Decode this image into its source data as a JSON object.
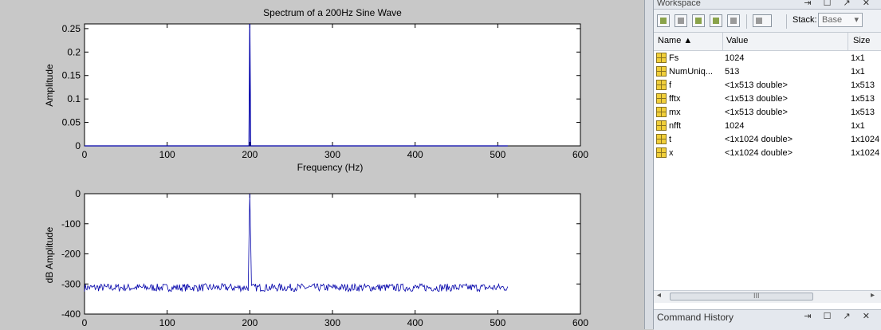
{
  "figure": {
    "chart_data": [
      {
        "type": "line",
        "title": "Spectrum of a 200Hz Sine Wave",
        "xlabel": "Frequency (Hz)",
        "ylabel": "Amplitude",
        "xlim": [
          0,
          600
        ],
        "ylim": [
          0,
          0.26
        ],
        "xticks": [
          "0",
          "100",
          "200",
          "300",
          "400",
          "500",
          "600"
        ],
        "yticks": [
          "0",
          "0.05",
          "0.1",
          "0.15",
          "0.2",
          "0.25"
        ],
        "x": [
          0,
          199,
          199.5,
          200,
          200.5,
          201,
          512
        ],
        "y": [
          0,
          0,
          0.12,
          0.26,
          0.12,
          0,
          0
        ],
        "color": "#0000aa"
      },
      {
        "type": "line",
        "title": "",
        "xlabel": "",
        "ylabel": "dB Amplitude",
        "xlim": [
          0,
          600
        ],
        "ylim": [
          -400,
          0
        ],
        "xticks": [
          "0",
          "100",
          "200",
          "300",
          "400",
          "500",
          "600"
        ],
        "yticks": [
          "0",
          "-100",
          "-200",
          "-300",
          "-400"
        ],
        "noise_level": -312,
        "peak_x": 200,
        "peak_y": 0,
        "x_end": 512,
        "color": "#0000aa"
      }
    ]
  },
  "workspace": {
    "title": "Workspace",
    "title_icons": "⇥ ☐ ↗ ✕",
    "stack_label": "Stack:",
    "stack_value": "Base",
    "columns": {
      "name": "Name ▲",
      "value": "Value",
      "size": "Size"
    },
    "variables": [
      {
        "name": "Fs",
        "value": "1024",
        "size": "1x1"
      },
      {
        "name": "NumUniq...",
        "value": "513",
        "size": "1x1"
      },
      {
        "name": "f",
        "value": "<1x513 double>",
        "size": "1x513"
      },
      {
        "name": "fftx",
        "value": "<1x513 double>",
        "size": "1x513"
      },
      {
        "name": "mx",
        "value": "<1x513 double>",
        "size": "1x513"
      },
      {
        "name": "nfft",
        "value": "1024",
        "size": "1x1"
      },
      {
        "name": "t",
        "value": "<1x1024 double>",
        "size": "1x1024"
      },
      {
        "name": "x",
        "value": "<1x1024 double>",
        "size": "1x1024"
      }
    ],
    "scroll_grip": "III",
    "scroll_left": "◂",
    "scroll_right": "▸"
  },
  "command_history": {
    "title": "Command History",
    "icons": "⇥ ☐ ↗ ✕"
  }
}
